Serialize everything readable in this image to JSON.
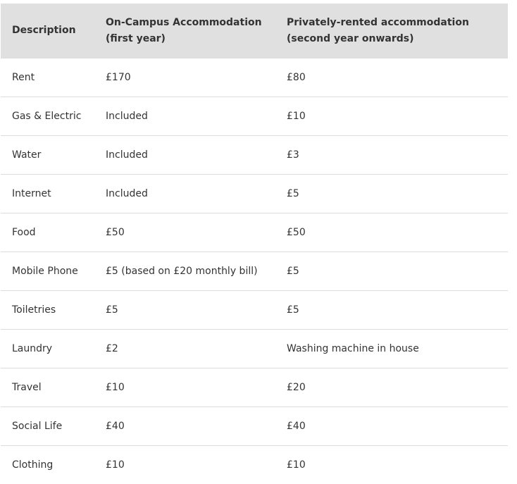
{
  "table": {
    "header": [
      "Description",
      "On-Campus Accommodation (first year)",
      "Privately-rented accommodation (second year onwards)"
    ],
    "rows": [
      [
        "Rent",
        "£170",
        "£80"
      ],
      [
        "Gas & Electric",
        "Included",
        "£10"
      ],
      [
        "Water",
        "Included",
        "£3"
      ],
      [
        "Internet",
        "Included",
        "£5"
      ],
      [
        "Food",
        "£50",
        "£50"
      ],
      [
        "Mobile Phone",
        "£5 (based on £20 monthly bill)",
        "£5"
      ],
      [
        "Toiletries",
        "£5",
        "£5"
      ],
      [
        "Laundry",
        "£2",
        "Washing machine in house"
      ],
      [
        "Travel",
        "£10",
        "£20"
      ],
      [
        "Social Life",
        "£40",
        "£40"
      ],
      [
        "Clothing",
        "£10",
        "£10"
      ]
    ]
  }
}
